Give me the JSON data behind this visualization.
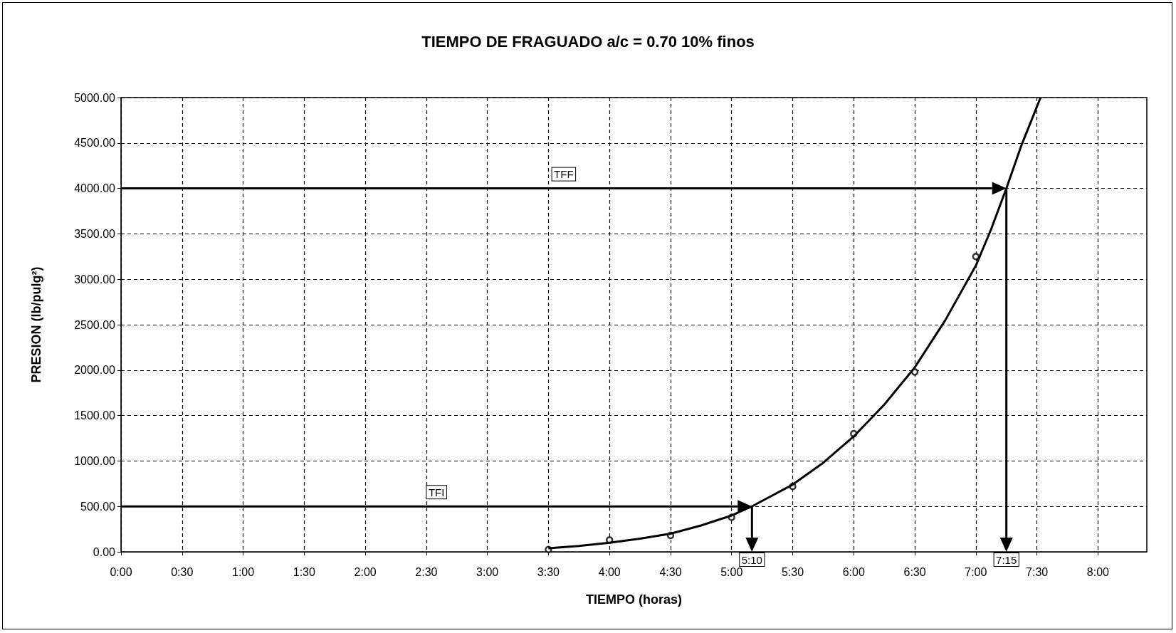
{
  "chart_data": {
    "type": "scatter",
    "title": "TIEMPO DE FRAGUADO a/c = 0.70 10% finos",
    "xlabel": "TIEMPO (horas)",
    "ylabel": "PRESION (lb/pulg²)",
    "series": [
      {
        "color": "#000000",
        "marker": "circle",
        "x": [
          3.5,
          4,
          4.5,
          5,
          5.5,
          6,
          6.5,
          7
        ],
        "values": [
          25,
          130,
          180,
          380,
          720,
          1300,
          1980,
          3250
        ]
      },
      {
        "type": "line",
        "color": "#000000",
        "marker": "none",
        "line_style": "solid",
        "x": [
          3.5,
          3.75,
          4,
          4.25,
          4.5,
          4.75,
          5,
          5.1667,
          5.25,
          5.5,
          5.75,
          6,
          6.25,
          6.5,
          6.75,
          7,
          7.125,
          7.25,
          7.375,
          7.53
        ],
        "values": [
          40,
          65,
          100,
          145,
          200,
          290,
          400,
          500,
          560,
          740,
          980,
          1270,
          1620,
          2030,
          2550,
          3150,
          3550,
          4000,
          4480,
          5000
        ]
      }
    ],
    "xlim": [
      0,
      8.4
    ],
    "xticks": [
      {
        "value": 0,
        "label": "0:00"
      },
      {
        "value": 0.5,
        "label": "0:30"
      },
      {
        "value": 1,
        "label": "1:00"
      },
      {
        "value": 1.5,
        "label": "1:30"
      },
      {
        "value": 2,
        "label": "2:00"
      },
      {
        "value": 2.5,
        "label": "2:30"
      },
      {
        "value": 3,
        "label": "3:00"
      },
      {
        "value": 3.5,
        "label": "3:30"
      },
      {
        "value": 4,
        "label": "4:00"
      },
      {
        "value": 4.5,
        "label": "4:30"
      },
      {
        "value": 5,
        "label": "5:00"
      },
      {
        "value": 5.5,
        "label": "5:30"
      },
      {
        "value": 6,
        "label": "6:00"
      },
      {
        "value": 6.5,
        "label": "6:30"
      },
      {
        "value": 7,
        "label": "7:00"
      },
      {
        "value": 7.5,
        "label": "7:30"
      },
      {
        "value": 8,
        "label": "8:00"
      }
    ],
    "ylim": [
      0,
      5000
    ],
    "yticks": [
      {
        "value": 0,
        "label": "0.00"
      },
      {
        "value": 500,
        "label": "500.00"
      },
      {
        "value": 1000,
        "label": "1000.00"
      },
      {
        "value": 1500,
        "label": "1500.00"
      },
      {
        "value": 2000,
        "label": "2000.00"
      },
      {
        "value": 2500,
        "label": "2500.00"
      },
      {
        "value": 3000,
        "label": "3000.00"
      },
      {
        "value": 3500,
        "label": "3500.00"
      },
      {
        "value": 4000,
        "label": "4000.00"
      },
      {
        "value": 4500,
        "label": "4500.00"
      },
      {
        "value": 5000,
        "label": "5000.00"
      }
    ],
    "ref_lines": [
      {
        "axis": "y",
        "value": 500,
        "label": "TFI"
      },
      {
        "axis": "x",
        "value": 5.1667,
        "label": "5:10"
      },
      {
        "axis": "y",
        "value": 4000,
        "label": "TFF"
      },
      {
        "axis": "x",
        "value": 7.25,
        "label": "7:15"
      }
    ],
    "grid": true
  }
}
